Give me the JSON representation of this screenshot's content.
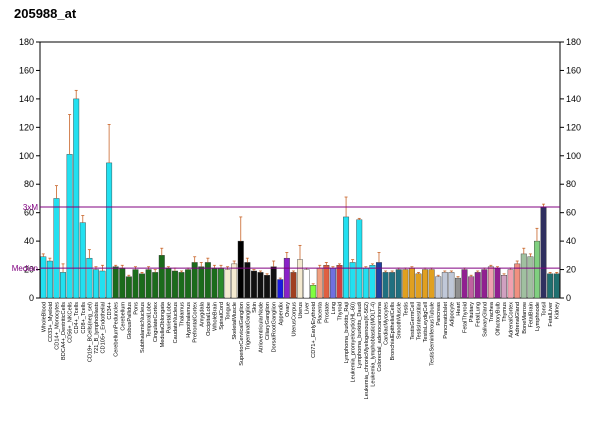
{
  "chart_data": {
    "type": "bar",
    "title": "205988_at",
    "categories": [
      "WholeBlood",
      "CD33+_Myeloid",
      "CD14+_Monocytes",
      "BDCA4+_DentriticCells",
      "CD56+_NKCells",
      "CD4+_Tcells",
      "CD8+_Tcells",
      "CD19+_BCells(neg_sel)",
      "721_B_lymphoblasts",
      "CD105+_Endothelial",
      "CD34+",
      "CerebellumPeduncles",
      "Cerebellum",
      "GlobusPallidus",
      "Pons",
      "SubthalamicNucleus",
      "TemporalLobe",
      "CingulateCortex",
      "MedullaOblongata",
      "ParietalLobe",
      "CaudateNucleus",
      "Thalamus",
      "Hypothalamus",
      "PrefrontalCortex",
      "Amygdala",
      "OccipitalLobe",
      "WholeBrain",
      "SpinalCord",
      "Tongue",
      "SkeletalMuscle",
      "SuperiorCervicalGanglion",
      "TrigeminalGanglion",
      "Skin",
      "AtrioventricularNode",
      "CiliaryGanglion",
      "DorsalRootGanglion",
      "Appendix",
      "Ovary",
      "UterusCorpus",
      "Uterus",
      "Liver",
      "CD71+_EarlyErythroid",
      "Placenta",
      "Prostate",
      "Lung",
      "Thyroid",
      "Lymphoma_burkitts_Raji",
      "Leukemia_promyelocytic(HL-60)",
      "Lymphoma_burkitts_Daudi",
      "Leukemia_chronicMyelogenous(K-562)",
      "Leukemia_lymphoblastic(MOLT-4)",
      "Colorectal_adenocarcinoma",
      "CardiacMyocytes",
      "BronchialEpithelialCells",
      "SmoothMuscle",
      "Testis",
      "TestisGermCell",
      "TestisInterstitial",
      "TestisLeydigCell",
      "TestisSeminiferousTubule",
      "Pancreas",
      "PancreaticIslet",
      "Adipocyte",
      "Heart",
      "FetalThyroid",
      "Pituitary",
      "FetalLung",
      "SalivaryGland",
      "Trachea",
      "OlfactoryBulb",
      "Thymus",
      "AdrenalCortex",
      "AdrenalGland",
      "BoneMarrow",
      "FetalBrain",
      "Lymphnode",
      "Tonsil",
      "FetalLiver",
      "Kidney"
    ],
    "values": [
      29,
      26,
      70,
      18,
      101,
      140,
      53,
      28,
      20,
      19,
      95,
      22,
      21,
      15,
      20,
      17,
      20,
      18,
      30,
      21,
      19,
      18,
      20,
      25,
      22,
      25,
      21,
      21,
      20,
      24,
      40,
      25,
      19,
      18,
      16,
      22,
      13,
      28,
      18,
      27,
      20,
      9,
      21,
      23,
      21,
      23,
      57,
      25,
      55,
      21,
      23,
      25,
      18,
      18,
      20,
      20,
      21,
      17,
      20,
      20,
      15,
      18,
      18,
      14,
      20,
      15,
      18,
      20,
      22,
      21,
      16,
      20,
      24,
      31,
      29,
      40,
      64,
      17,
      17
    ],
    "errors": [
      2,
      2,
      9,
      6,
      28,
      6,
      5,
      6,
      2,
      4,
      27,
      1,
      2,
      1,
      2,
      1,
      2,
      2,
      5,
      1,
      2,
      1,
      1,
      4,
      3,
      3,
      2,
      2,
      2,
      2,
      17,
      3,
      1,
      1,
      1,
      4,
      1,
      4,
      1,
      10,
      1,
      1,
      2,
      2,
      1,
      1,
      14,
      2,
      1,
      1,
      1,
      7,
      1,
      1,
      1,
      1,
      1,
      1,
      1,
      1,
      1,
      1,
      1,
      1,
      1,
      1,
      1,
      1,
      1,
      1,
      1,
      1,
      2,
      4,
      2,
      9,
      2,
      1,
      1
    ],
    "colors": [
      "#22e0f0",
      "#22e0f0",
      "#22e0f0",
      "#22e0f0",
      "#22e0f0",
      "#22e0f0",
      "#22e0f0",
      "#22e0f0",
      "#22e0f0",
      "#22e0f0",
      "#22e0f0",
      "#1b6b1b",
      "#1b6b1b",
      "#1b6b1b",
      "#1b6b1b",
      "#1b6b1b",
      "#1b6b1b",
      "#1b6b1b",
      "#1b6b1b",
      "#1b6b1b",
      "#1b6b1b",
      "#1b6b1b",
      "#1b6b1b",
      "#1b6b1b",
      "#1b6b1b",
      "#1b6b1b",
      "#1b6b1b",
      "#2a8a2a",
      "#f4ead0",
      "#f4ead0",
      "#000000",
      "#111111",
      "#111111",
      "#111111",
      "#111111",
      "#111111",
      "#1a1ae0",
      "#8a22c8",
      "#a04020",
      "#f4ead0",
      "#ffffff",
      "#80ff40",
      "#f0a080",
      "#e06040",
      "#7070e0",
      "#d04040",
      "#22e0f0",
      "#22e0f0",
      "#22e0f0",
      "#22e0f0",
      "#22e0f0",
      "#2040a0",
      "#207080",
      "#207080",
      "#207080",
      "#e0a020",
      "#e0a020",
      "#e0a020",
      "#e0a020",
      "#e0a020",
      "#c0c8d8",
      "#c0c8d8",
      "#c0c8d8",
      "#909090",
      "#902090",
      "#c060a0",
      "#902090",
      "#902090",
      "#f0a0b0",
      "#902090",
      "#d0a0c0",
      "#f0a0b0",
      "#f09080",
      "#a0c0a0",
      "#a0c0a0",
      "#80d080",
      "#303060",
      "#207070",
      "#207070"
    ],
    "error_color": "#c86428",
    "ylim": [
      0,
      180
    ],
    "yticks": [
      0,
      20,
      40,
      60,
      80,
      100,
      120,
      140,
      160,
      180
    ],
    "y2ticks": [
      0,
      20,
      40,
      60,
      80,
      100,
      120,
      140,
      160,
      180
    ],
    "reference_lines": [
      {
        "label": "3xM",
        "value": 64
      },
      {
        "label": "Median",
        "value": 21
      }
    ],
    "reference_color": "#800080"
  }
}
